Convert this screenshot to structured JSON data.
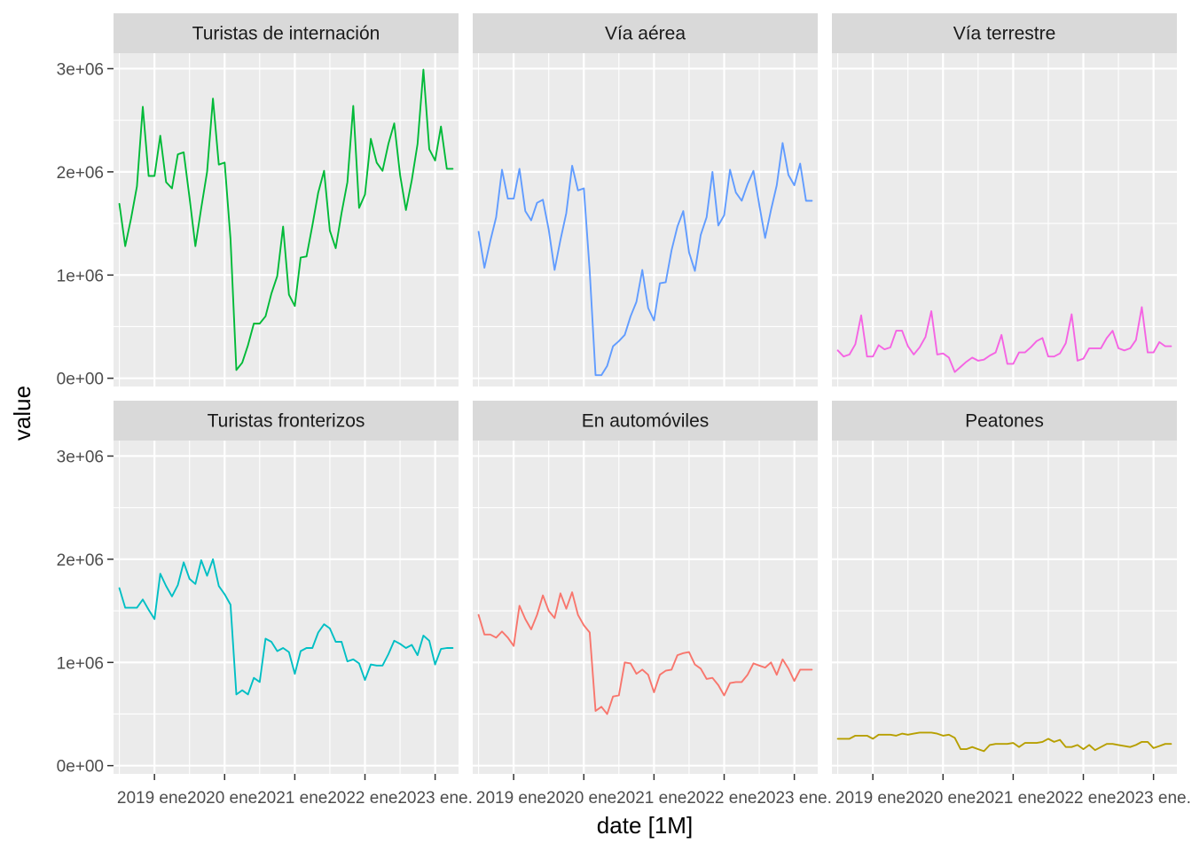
{
  "chart_data": {
    "type": "line",
    "layout": "facet_wrap 3 columns x 2 rows, shared y axis",
    "xlabel": "date [1M]",
    "ylabel": "value",
    "x_tick_labels": [
      "2019 ene.",
      "2020 ene.",
      "2021 ene.",
      "2022 ene.",
      "2023 ene."
    ],
    "y_tick_labels": [
      "0e+00",
      "1e+06",
      "2e+06",
      "3e+06"
    ],
    "ylim": [
      -80000,
      3150000
    ],
    "xlim": [
      "2018-06",
      "2023-05"
    ],
    "grid": true,
    "legend": "none",
    "x": [
      "2018-07",
      "2018-08",
      "2018-09",
      "2018-10",
      "2018-11",
      "2018-12",
      "2019-01",
      "2019-02",
      "2019-03",
      "2019-04",
      "2019-05",
      "2019-06",
      "2019-07",
      "2019-08",
      "2019-09",
      "2019-10",
      "2019-11",
      "2019-12",
      "2020-01",
      "2020-02",
      "2020-03",
      "2020-04",
      "2020-05",
      "2020-06",
      "2020-07",
      "2020-08",
      "2020-09",
      "2020-10",
      "2020-11",
      "2020-12",
      "2021-01",
      "2021-02",
      "2021-03",
      "2021-04",
      "2021-05",
      "2021-06",
      "2021-07",
      "2021-08",
      "2021-09",
      "2021-10",
      "2021-11",
      "2021-12",
      "2022-01",
      "2022-02",
      "2022-03",
      "2022-04",
      "2022-05",
      "2022-06",
      "2022-07",
      "2022-08",
      "2022-09",
      "2022-10",
      "2022-11",
      "2022-12",
      "2023-01",
      "2023-02",
      "2023-03",
      "2023-04"
    ],
    "series": [
      {
        "name": "Turistas de internación",
        "color": "#00BA38",
        "values": [
          1690000,
          1280000,
          1550000,
          1860000,
          2630000,
          1960000,
          1960000,
          2350000,
          1900000,
          1840000,
          2170000,
          2190000,
          1750000,
          1280000,
          1650000,
          2000000,
          2710000,
          2070000,
          2090000,
          1350000,
          80000,
          150000,
          320000,
          530000,
          530000,
          600000,
          820000,
          990000,
          1470000,
          810000,
          700000,
          1170000,
          1180000,
          1480000,
          1800000,
          2010000,
          1430000,
          1260000,
          1600000,
          1900000,
          2640000,
          1650000,
          1780000,
          2320000,
          2090000,
          2010000,
          2270000,
          2470000,
          1970000,
          1630000,
          1920000,
          2270000,
          2990000,
          2220000,
          2110000,
          2440000,
          2030000,
          2030000
        ]
      },
      {
        "name": "Vía aérea",
        "color": "#619CFF",
        "values": [
          1420000,
          1070000,
          1330000,
          1560000,
          2020000,
          1740000,
          1740000,
          2030000,
          1620000,
          1530000,
          1700000,
          1730000,
          1440000,
          1050000,
          1340000,
          1600000,
          2060000,
          1820000,
          1840000,
          1040000,
          30000,
          30000,
          120000,
          310000,
          360000,
          420000,
          600000,
          740000,
          1050000,
          680000,
          560000,
          920000,
          930000,
          1240000,
          1470000,
          1620000,
          1220000,
          1040000,
          1390000,
          1560000,
          2000000,
          1480000,
          1580000,
          2020000,
          1800000,
          1720000,
          1880000,
          2010000,
          1680000,
          1360000,
          1630000,
          1870000,
          2280000,
          1970000,
          1870000,
          2080000,
          1720000,
          1720000
        ]
      },
      {
        "name": "Vía terrestre",
        "color": "#F564E3",
        "values": [
          270000,
          210000,
          230000,
          330000,
          610000,
          210000,
          210000,
          320000,
          280000,
          300000,
          460000,
          460000,
          310000,
          230000,
          300000,
          400000,
          650000,
          230000,
          240000,
          200000,
          60000,
          110000,
          160000,
          200000,
          170000,
          180000,
          220000,
          250000,
          420000,
          140000,
          140000,
          250000,
          250000,
          300000,
          360000,
          390000,
          210000,
          210000,
          240000,
          340000,
          620000,
          170000,
          190000,
          290000,
          290000,
          290000,
          390000,
          460000,
          290000,
          270000,
          290000,
          370000,
          690000,
          250000,
          250000,
          350000,
          310000,
          310000
        ]
      },
      {
        "name": "Turistas fronterizos",
        "color": "#00BFC4",
        "values": [
          1720000,
          1530000,
          1530000,
          1530000,
          1610000,
          1510000,
          1420000,
          1860000,
          1740000,
          1640000,
          1750000,
          1970000,
          1810000,
          1760000,
          1990000,
          1840000,
          2000000,
          1740000,
          1660000,
          1560000,
          690000,
          730000,
          690000,
          850000,
          810000,
          1230000,
          1200000,
          1110000,
          1140000,
          1100000,
          890000,
          1110000,
          1140000,
          1140000,
          1290000,
          1370000,
          1330000,
          1200000,
          1200000,
          1010000,
          1030000,
          990000,
          830000,
          980000,
          970000,
          970000,
          1080000,
          1210000,
          1180000,
          1140000,
          1170000,
          1070000,
          1260000,
          1210000,
          980000,
          1130000,
          1140000,
          1140000
        ]
      },
      {
        "name": "En automóviles",
        "color": "#F8766D",
        "values": [
          1460000,
          1270000,
          1270000,
          1240000,
          1300000,
          1240000,
          1160000,
          1550000,
          1420000,
          1320000,
          1460000,
          1650000,
          1500000,
          1430000,
          1670000,
          1520000,
          1680000,
          1460000,
          1360000,
          1290000,
          530000,
          570000,
          500000,
          670000,
          680000,
          1000000,
          990000,
          890000,
          930000,
          880000,
          710000,
          880000,
          920000,
          930000,
          1070000,
          1090000,
          1100000,
          980000,
          940000,
          840000,
          850000,
          780000,
          680000,
          800000,
          810000,
          810000,
          880000,
          990000,
          970000,
          950000,
          1000000,
          880000,
          1030000,
          940000,
          820000,
          930000,
          930000,
          930000
        ]
      },
      {
        "name": "Peatones",
        "color": "#B79F00",
        "values": [
          260000,
          260000,
          260000,
          290000,
          290000,
          290000,
          260000,
          300000,
          300000,
          300000,
          290000,
          310000,
          300000,
          310000,
          320000,
          320000,
          320000,
          310000,
          290000,
          300000,
          270000,
          160000,
          160000,
          180000,
          160000,
          140000,
          200000,
          210000,
          210000,
          210000,
          220000,
          180000,
          220000,
          220000,
          220000,
          230000,
          260000,
          230000,
          250000,
          180000,
          180000,
          200000,
          160000,
          200000,
          150000,
          180000,
          210000,
          210000,
          200000,
          190000,
          180000,
          200000,
          230000,
          230000,
          170000,
          190000,
          210000,
          210000
        ]
      }
    ]
  }
}
